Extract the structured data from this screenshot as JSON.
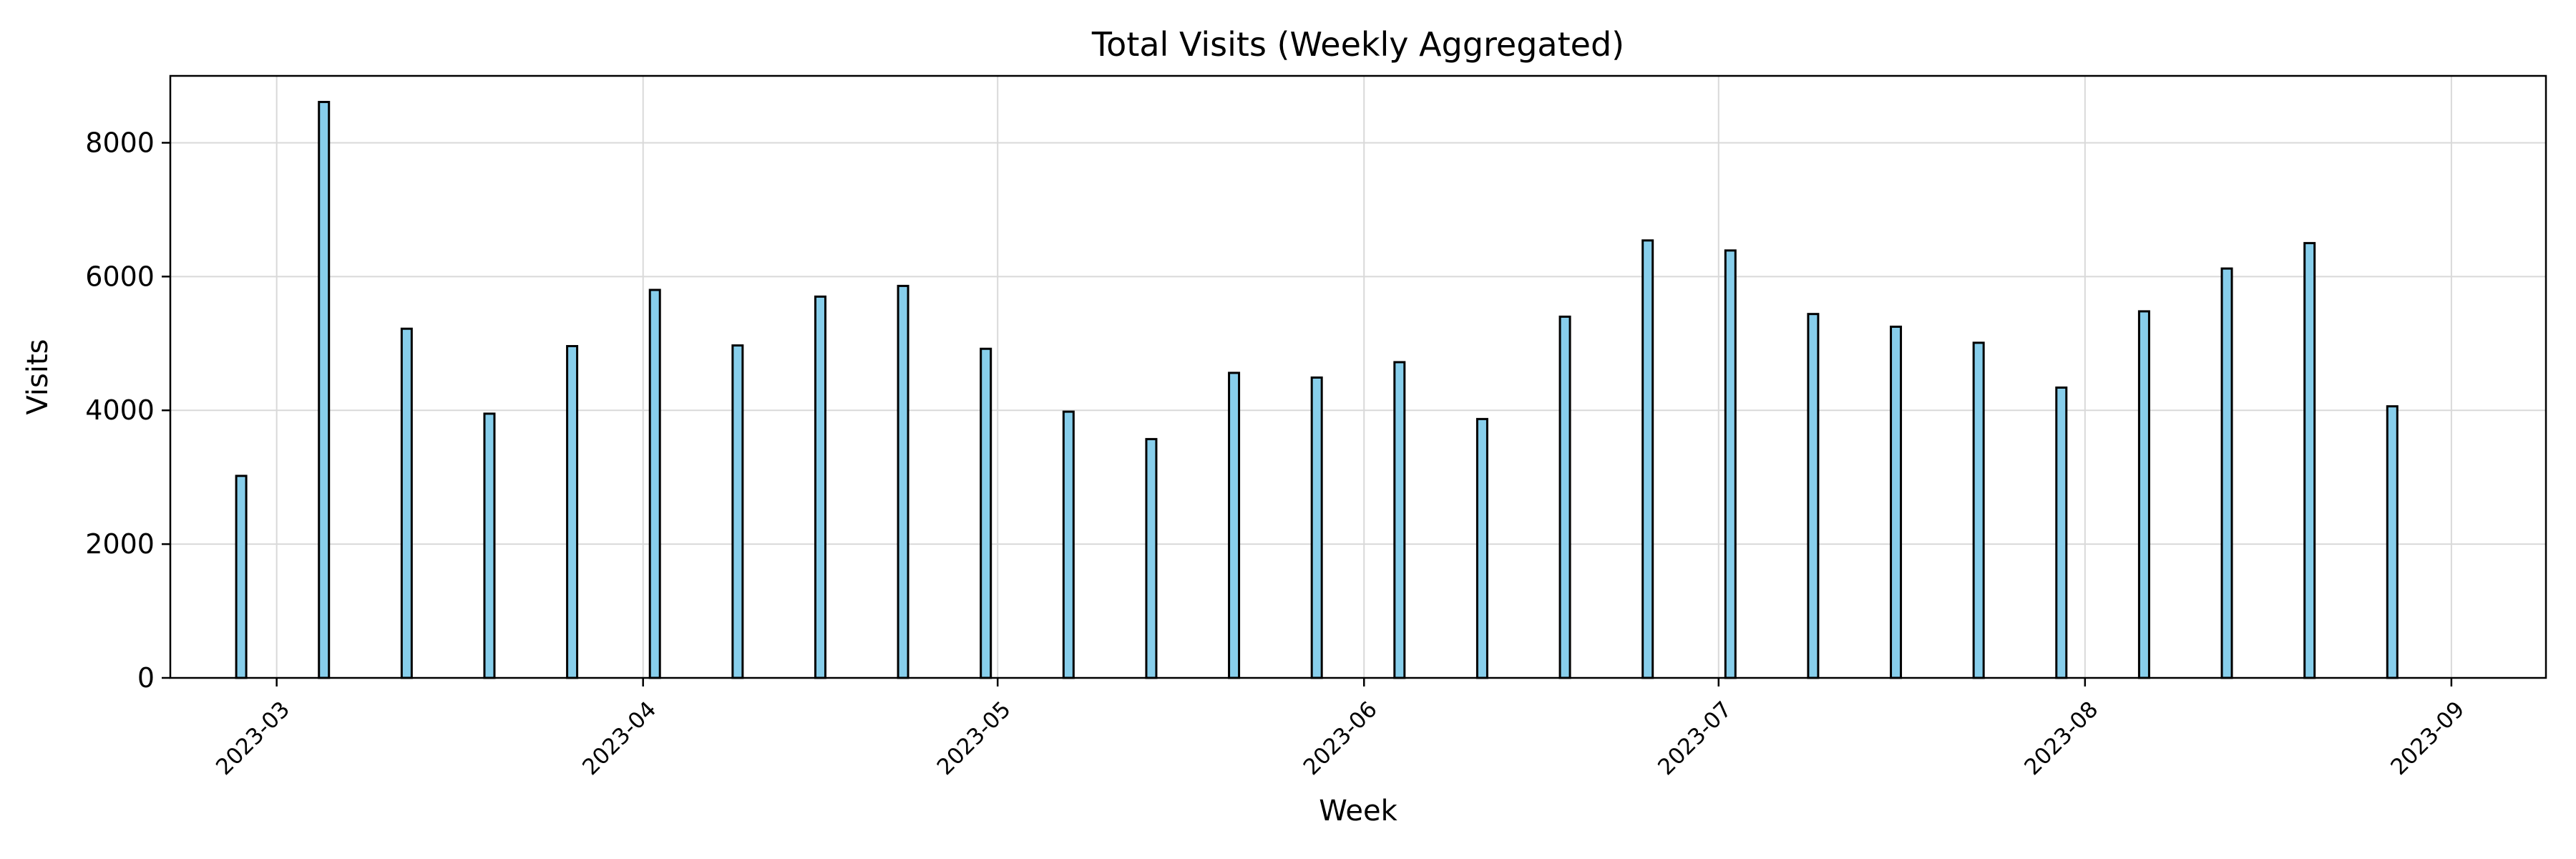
{
  "chart_data": {
    "type": "bar",
    "title": "Total Visits (Weekly Aggregated)",
    "xlabel": "Week",
    "ylabel": "Visits",
    "x_axis_type": "date",
    "xlim": [
      "2023-02-20",
      "2023-09-09"
    ],
    "ylim": [
      0,
      9000
    ],
    "yticks": [
      0,
      2000,
      4000,
      6000,
      8000
    ],
    "xticks": [
      {
        "date": "2023-03-01",
        "label": "2023-03"
      },
      {
        "date": "2023-04-01",
        "label": "2023-04"
      },
      {
        "date": "2023-05-01",
        "label": "2023-05"
      },
      {
        "date": "2023-06-01",
        "label": "2023-06"
      },
      {
        "date": "2023-07-01",
        "label": "2023-07"
      },
      {
        "date": "2023-08-01",
        "label": "2023-08"
      },
      {
        "date": "2023-09-01",
        "label": "2023-09"
      }
    ],
    "grid": true,
    "bar_color": "#87ceeb",
    "bar_edge_color": "#000000",
    "series": [
      {
        "x": [
          "2023-02-26",
          "2023-03-05",
          "2023-03-12",
          "2023-03-19",
          "2023-03-26",
          "2023-04-02",
          "2023-04-09",
          "2023-04-16",
          "2023-04-23",
          "2023-04-30",
          "2023-05-07",
          "2023-05-14",
          "2023-05-21",
          "2023-05-28",
          "2023-06-04",
          "2023-06-11",
          "2023-06-18",
          "2023-06-25",
          "2023-07-02",
          "2023-07-09",
          "2023-07-16",
          "2023-07-23",
          "2023-07-30",
          "2023-08-06",
          "2023-08-13",
          "2023-08-20",
          "2023-08-27"
        ],
        "values": [
          3020,
          8610,
          5220,
          3950,
          4960,
          5800,
          4970,
          5700,
          5860,
          4920,
          3980,
          3570,
          4560,
          4490,
          4720,
          3870,
          5400,
          6540,
          6390,
          5440,
          5250,
          5010,
          4340,
          5480,
          6120,
          6500,
          4060
        ]
      }
    ]
  }
}
